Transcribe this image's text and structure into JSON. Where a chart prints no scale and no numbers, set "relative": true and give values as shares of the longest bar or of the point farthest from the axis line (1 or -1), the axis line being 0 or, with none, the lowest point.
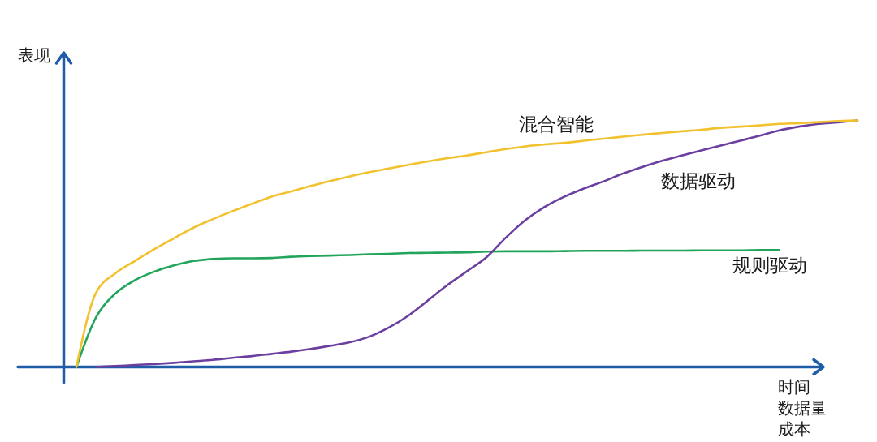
{
  "chart_data": {
    "type": "line",
    "relative": true,
    "ylabel": "表现",
    "xlabel": "时间数据量成本",
    "categories": [
      null,
      null,
      null,
      null,
      null,
      null,
      null,
      null,
      null,
      null,
      null,
      null,
      null,
      null,
      null,
      null,
      null,
      null,
      null,
      null,
      null,
      null,
      null,
      null,
      null,
      null,
      null,
      null,
      null,
      null,
      null,
      null,
      null,
      null,
      null,
      null,
      null,
      null,
      null,
      null,
      null
    ],
    "series": [
      {
        "name": "混合智能",
        "color": "#f2c12e",
        "values": [
          0,
          0.3,
          0.38,
          0.43,
          0.478,
          0.522,
          0.565,
          0.6,
          0.632,
          0.662,
          0.691,
          0.712,
          0.734,
          0.754,
          0.773,
          0.79,
          0.805,
          0.82,
          0.834,
          0.847,
          0.858,
          0.871,
          0.884,
          0.895,
          0.903,
          0.909,
          0.918,
          0.926,
          0.934,
          0.942,
          0.949,
          0.956,
          0.962,
          0.97,
          0.975,
          0.98,
          0.986,
          0.989,
          0.993,
          0.997,
          1
        ]
      },
      {
        "name": "数据驱动",
        "color": "#6b3fa0",
        "values": [
          null,
          0,
          0.004,
          0.008,
          0.012,
          0.017,
          0.023,
          0.029,
          0.037,
          0.044,
          0.053,
          0.062,
          0.073,
          0.086,
          0.1,
          0.123,
          0.16,
          0.208,
          0.27,
          0.332,
          0.388,
          0.445,
          0.525,
          0.596,
          0.65,
          0.691,
          0.724,
          0.753,
          0.785,
          0.812,
          0.836,
          0.858,
          0.878,
          0.898,
          0.918,
          0.938,
          0.96,
          0.975,
          0.986,
          0.992,
          1
        ]
      },
      {
        "name": "规则驱动",
        "color": "#22a55b",
        "values": [
          0,
          0.2,
          0.298,
          0.352,
          0.387,
          0.412,
          0.43,
          0.438,
          0.441,
          0.441,
          0.442,
          0.447,
          0.45,
          0.452,
          0.454,
          0.457,
          0.459,
          0.462,
          0.463,
          0.464,
          0.465,
          0.468,
          0.469,
          0.469,
          0.469,
          0.47,
          0.471,
          0.471,
          0.471,
          0.472,
          0.472,
          0.472,
          0.473,
          0.473,
          0.473,
          0.474,
          0.474,
          null,
          null,
          null,
          null
        ]
      }
    ]
  }
}
